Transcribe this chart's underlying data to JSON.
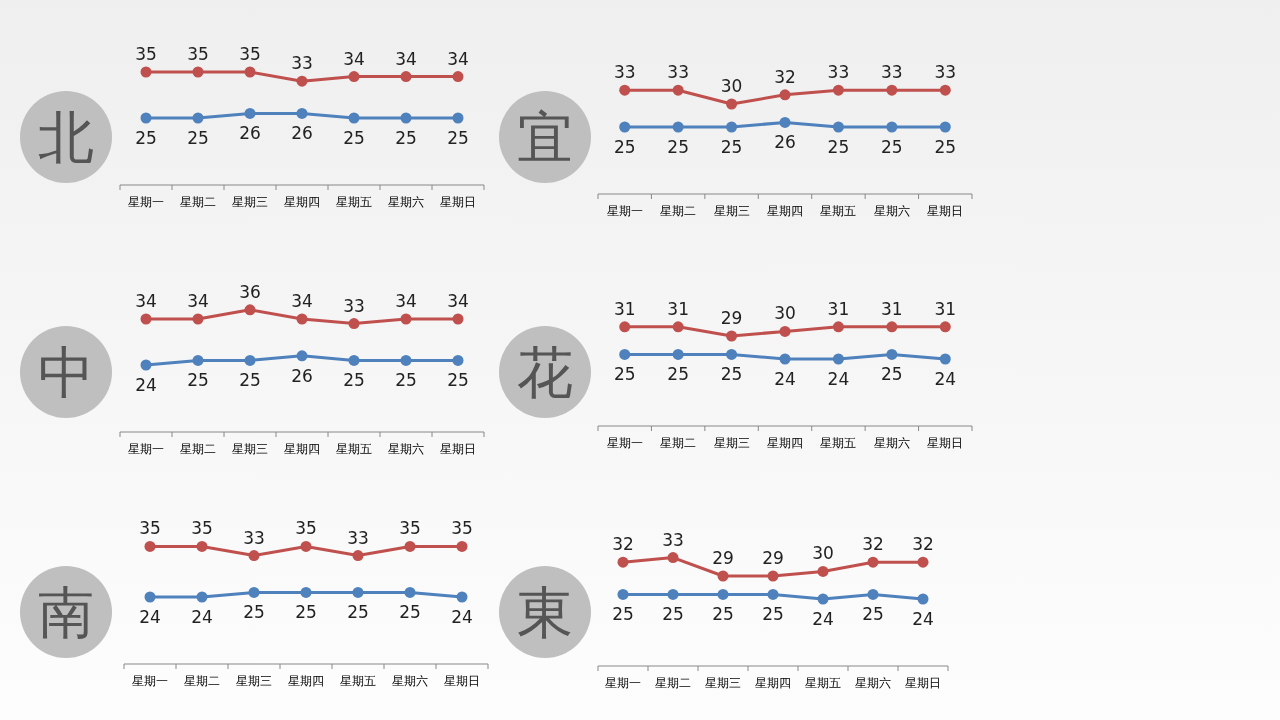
{
  "chart_data": [
    {
      "type": "line",
      "title": "北",
      "categories": [
        "星期一",
        "星期二",
        "星期三",
        "星期四",
        "星期五",
        "星期六",
        "星期日"
      ],
      "data_labels": true,
      "marker": "circle",
      "series": [
        {
          "color": "#c0504d",
          "values": [
            35,
            35,
            35,
            33,
            34,
            34,
            34
          ]
        },
        {
          "color": "#4f81bd",
          "values": [
            25,
            25,
            26,
            26,
            25,
            25,
            25
          ]
        }
      ]
    },
    {
      "type": "line",
      "title": "宜",
      "categories": [
        "星期一",
        "星期二",
        "星期三",
        "星期四",
        "星期五",
        "星期六",
        "星期日"
      ],
      "data_labels": true,
      "marker": "circle",
      "series": [
        {
          "color": "#c0504d",
          "values": [
            33,
            33,
            30,
            32,
            33,
            33,
            33
          ]
        },
        {
          "color": "#4f81bd",
          "values": [
            25,
            25,
            25,
            26,
            25,
            25,
            25
          ]
        }
      ]
    },
    {
      "type": "line",
      "title": "中",
      "categories": [
        "星期一",
        "星期二",
        "星期三",
        "星期四",
        "星期五",
        "星期六",
        "星期日"
      ],
      "data_labels": true,
      "marker": "circle",
      "series": [
        {
          "color": "#c0504d",
          "values": [
            34,
            34,
            36,
            34,
            33,
            34,
            34
          ]
        },
        {
          "color": "#4f81bd",
          "values": [
            24,
            25,
            25,
            26,
            25,
            25,
            25
          ]
        }
      ]
    },
    {
      "type": "line",
      "title": "花",
      "categories": [
        "星期一",
        "星期二",
        "星期三",
        "星期四",
        "星期五",
        "星期六",
        "星期日"
      ],
      "data_labels": true,
      "marker": "circle",
      "series": [
        {
          "color": "#c0504d",
          "values": [
            31,
            31,
            29,
            30,
            31,
            31,
            31
          ]
        },
        {
          "color": "#4f81bd",
          "values": [
            25,
            25,
            25,
            24,
            24,
            25,
            24
          ]
        }
      ]
    },
    {
      "type": "line",
      "title": "南",
      "categories": [
        "星期一",
        "星期二",
        "星期三",
        "星期四",
        "星期五",
        "星期六",
        "星期日"
      ],
      "data_labels": true,
      "marker": "circle",
      "series": [
        {
          "color": "#c0504d",
          "values": [
            35,
            35,
            33,
            35,
            33,
            35,
            35
          ]
        },
        {
          "color": "#4f81bd",
          "values": [
            24,
            24,
            25,
            25,
            25,
            25,
            24
          ]
        }
      ]
    },
    {
      "type": "line",
      "title": "東",
      "categories": [
        "星期一",
        "星期二",
        "星期三",
        "星期四",
        "星期五",
        "星期六",
        "星期日"
      ],
      "data_labels": true,
      "marker": "circle",
      "series": [
        {
          "color": "#c0504d",
          "values": [
            32,
            33,
            29,
            29,
            30,
            32,
            32
          ]
        },
        {
          "color": "#4f81bd",
          "values": [
            25,
            25,
            25,
            25,
            24,
            25,
            24
          ]
        }
      ]
    }
  ]
}
